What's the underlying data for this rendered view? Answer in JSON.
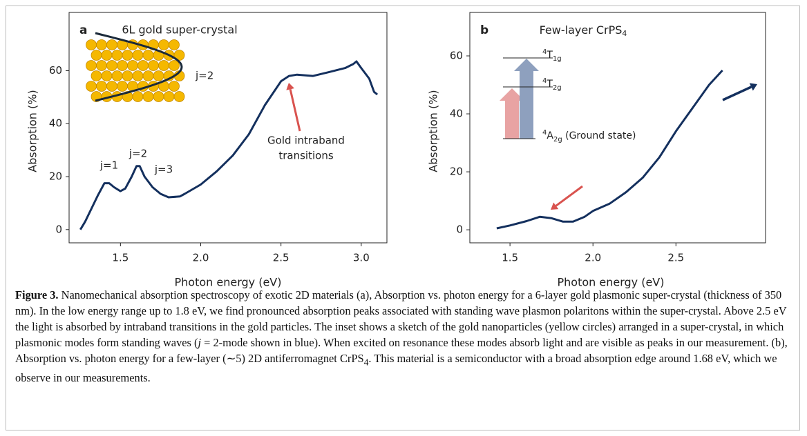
{
  "chart_data": [
    {
      "type": "line",
      "panel": "a",
      "title": "6L gold super-crystal",
      "xlabel": "Photon energy (eV)",
      "ylabel": "Absorption (%)",
      "color": "#14305e",
      "x": [
        1.25,
        1.28,
        1.32,
        1.36,
        1.4,
        1.43,
        1.46,
        1.5,
        1.53,
        1.57,
        1.6,
        1.62,
        1.65,
        1.7,
        1.75,
        1.8,
        1.87,
        1.9,
        2.0,
        2.1,
        2.2,
        2.3,
        2.4,
        2.5,
        2.55,
        2.6,
        2.7,
        2.8,
        2.9,
        2.95,
        2.97,
        3.0,
        3.05,
        3.08,
        3.1
      ],
      "values": [
        0,
        3,
        8,
        13,
        17.5,
        17.5,
        16,
        14.5,
        15.5,
        20,
        24,
        24,
        20,
        16,
        13.5,
        12.2,
        12.5,
        13.5,
        17,
        22,
        28,
        36,
        47,
        56,
        58,
        58.5,
        58,
        59.5,
        61,
        62.5,
        63.5,
        61,
        57,
        52,
        51
      ],
      "xlim": [
        1.18,
        3.16
      ],
      "ylim": [
        -5,
        82
      ],
      "xticks": [
        1.5,
        {
          "value": 2.0,
          "label": "2.0"
        },
        2.5,
        {
          "value": 3.0,
          "label": "3.0"
        }
      ],
      "yticks": [
        0,
        20,
        40,
        60
      ],
      "annotations": [
        "j=1",
        "j=2",
        "j=3",
        "Gold intraband",
        "transitions"
      ],
      "inset_label": "j=2"
    },
    {
      "type": "line",
      "panel": "b",
      "title": {
        "main": "Few-layer CrPS",
        "sub": "4"
      },
      "xlabel": "Photon energy (eV)",
      "ylabel": "Absorption (%)",
      "color": "#14305e",
      "x": [
        1.42,
        1.5,
        1.6,
        1.68,
        1.75,
        1.82,
        1.88,
        1.95,
        2.0,
        2.1,
        2.2,
        2.3,
        2.4,
        2.5,
        2.6,
        2.7,
        2.78
      ],
      "values": [
        0.5,
        1.5,
        3,
        4.5,
        4,
        2.8,
        2.8,
        4.5,
        6.5,
        9,
        13,
        18,
        25,
        34,
        42,
        50,
        55
      ],
      "xlim": [
        1.258,
        3.04
      ],
      "ylim": [
        -4.5,
        75
      ],
      "xticks": [
        1.5,
        {
          "value": 2.0,
          "label": "2.0"
        },
        2.5
      ],
      "yticks": [
        0,
        20,
        40,
        60
      ],
      "levels": [
        {
          "sup": "4",
          "base": "T",
          "sub": "1g",
          "suffix": ""
        },
        {
          "sup": "4",
          "base": "T",
          "sub": "2g",
          "suffix": ""
        },
        {
          "sup": "4",
          "base": "A",
          "sub": "2g",
          "suffix": " (Ground state)"
        }
      ]
    }
  ],
  "caption": {
    "label": "Figure 3.",
    "t1": " Nanomechanical absorption spectroscopy of exotic 2D materials (a), Absorption vs. photon energy for a 6-layer gold plasmonic super-crystal (thickness of 350 nm). In the low energy range up to 1.8 eV, we find pronounced absorption peaks associated with standing wave plasmon polaritons within the super-crystal. Above 2.5 eV the light is absorbed by intraband transitions in the gold particles. The inset shows a sketch of the gold nanoparticles (yellow circles) arranged in a super-crystal, in which plasmonic modes form standing waves (",
    "j": "j",
    "t2": " = 2-mode shown in blue). When excited on resonance these modes absorb light and are visible as peaks in our measurement. (b), Absorption vs. photon energy for a few-layer (∼5) 2D antiferromagnet CrPS",
    "sub": "4",
    "t3": ". This material is a semiconductor with a broad absorption edge around 1.68 eV, which we observe in our measurements."
  }
}
